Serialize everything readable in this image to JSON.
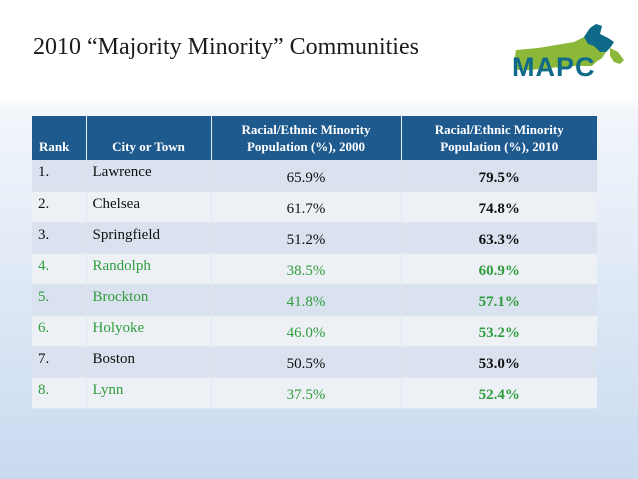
{
  "title": "2010 “Majority Minority” Communities",
  "logo": {
    "text": "MAPC"
  },
  "colors": {
    "header_bg": "#1f5a8f",
    "green_text": "#2f9d3c",
    "logo_green": "#8cb83a",
    "logo_blue": "#0f6a8a"
  },
  "table": {
    "headers": {
      "rank": "Rank",
      "city": "City or Town",
      "pop2000": "Racial/Ethnic Minority Population (%), 2000",
      "pop2010": "Racial/Ethnic Minority Population (%), 2010"
    },
    "rows": [
      {
        "rank": "1.",
        "city": "Lawrence",
        "pop2000": "65.9%",
        "pop2010": "79.5%",
        "highlight": false
      },
      {
        "rank": "2.",
        "city": "Chelsea",
        "pop2000": "61.7%",
        "pop2010": "74.8%",
        "highlight": false
      },
      {
        "rank": "3.",
        "city": "Springfield",
        "pop2000": "51.2%",
        "pop2010": "63.3%",
        "highlight": false
      },
      {
        "rank": "4.",
        "city": "Randolph",
        "pop2000": "38.5%",
        "pop2010": "60.9%",
        "highlight": true
      },
      {
        "rank": "5.",
        "city": "Brockton",
        "pop2000": "41.8%",
        "pop2010": "57.1%",
        "highlight": true
      },
      {
        "rank": "6.",
        "city": "Holyoke",
        "pop2000": "46.0%",
        "pop2010": "53.2%",
        "highlight": true
      },
      {
        "rank": "7.",
        "city": "Boston",
        "pop2000": "50.5%",
        "pop2010": "53.0%",
        "highlight": false
      },
      {
        "rank": "8.",
        "city": "Lynn",
        "pop2000": "37.5%",
        "pop2010": "52.4%",
        "highlight": true
      }
    ]
  }
}
